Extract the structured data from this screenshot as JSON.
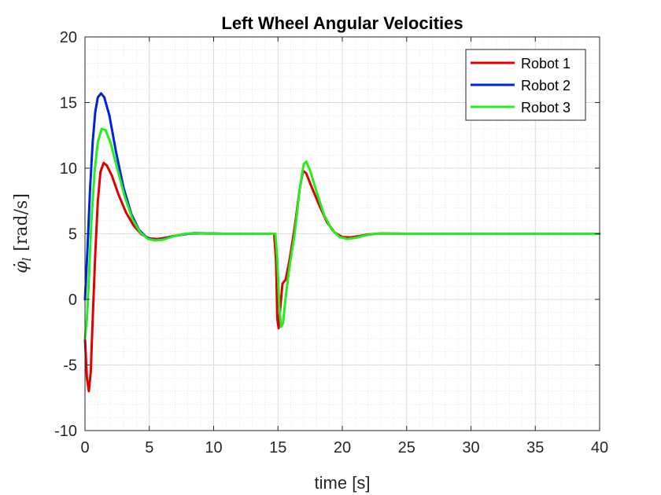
{
  "chart_data": {
    "type": "line",
    "title": "Left Wheel Angular Velocities",
    "xlabel": "time [s]",
    "ylabel": "φ̇ l [rad/s]",
    "ylabel_parts": {
      "symbol": "φ̇",
      "subscript": "l",
      "unit": "[rad/s]"
    },
    "xlim": [
      0,
      40
    ],
    "ylim": [
      -10,
      20
    ],
    "xticks": [
      0,
      5,
      10,
      15,
      20,
      25,
      30,
      35,
      40
    ],
    "yticks": [
      -10,
      -5,
      0,
      5,
      10,
      15,
      20
    ],
    "xtick_labels": [
      "0",
      "5",
      "10",
      "15",
      "20",
      "25",
      "30",
      "35",
      "40"
    ],
    "ytick_labels": [
      "-10",
      "-5",
      "0",
      "5",
      "10",
      "15",
      "20"
    ],
    "grid": true,
    "minor_grid": true,
    "legend_position": "top-right",
    "series": [
      {
        "name": "Robot 1",
        "color": "#e00000",
        "points": [
          [
            0,
            -3.0
          ],
          [
            0.15,
            -6.0
          ],
          [
            0.3,
            -7.0
          ],
          [
            0.45,
            -5.5
          ],
          [
            0.6,
            -1.5
          ],
          [
            0.8,
            3.5
          ],
          [
            1.0,
            7.5
          ],
          [
            1.2,
            9.7
          ],
          [
            1.45,
            10.4
          ],
          [
            1.7,
            10.2
          ],
          [
            2.1,
            9.4
          ],
          [
            2.6,
            8.0
          ],
          [
            3.2,
            6.6
          ],
          [
            3.8,
            5.6
          ],
          [
            4.4,
            4.95
          ],
          [
            5.0,
            4.65
          ],
          [
            5.6,
            4.6
          ],
          [
            6.3,
            4.7
          ],
          [
            7.0,
            4.85
          ],
          [
            8.0,
            5.0
          ],
          [
            9.0,
            5.03
          ],
          [
            10.0,
            5.0
          ],
          [
            12.0,
            5.0
          ],
          [
            14.7,
            5.0
          ],
          [
            14.85,
            3.0
          ],
          [
            14.95,
            -1.5
          ],
          [
            15.05,
            -2.2
          ],
          [
            15.15,
            -1.0
          ],
          [
            15.35,
            1.2
          ],
          [
            15.6,
            1.5
          ],
          [
            15.9,
            3.0
          ],
          [
            16.3,
            5.5
          ],
          [
            16.7,
            8.5
          ],
          [
            16.95,
            9.8
          ],
          [
            17.2,
            9.6
          ],
          [
            17.6,
            8.6
          ],
          [
            18.2,
            7.2
          ],
          [
            18.8,
            5.9
          ],
          [
            19.4,
            5.1
          ],
          [
            20.0,
            4.75
          ],
          [
            20.6,
            4.72
          ],
          [
            21.3,
            4.82
          ],
          [
            22.0,
            4.95
          ],
          [
            23.0,
            5.02
          ],
          [
            25.0,
            5.0
          ],
          [
            40.0,
            5.0
          ]
        ]
      },
      {
        "name": "Robot 2",
        "color": "#0022dd",
        "points": [
          [
            0,
            0.0
          ],
          [
            0.2,
            4.0
          ],
          [
            0.4,
            8.5
          ],
          [
            0.6,
            12.0
          ],
          [
            0.8,
            14.3
          ],
          [
            1.0,
            15.4
          ],
          [
            1.25,
            15.7
          ],
          [
            1.5,
            15.4
          ],
          [
            1.9,
            14.0
          ],
          [
            2.4,
            11.3
          ],
          [
            3.0,
            8.5
          ],
          [
            3.6,
            6.5
          ],
          [
            4.2,
            5.3
          ],
          [
            4.8,
            4.7
          ],
          [
            5.4,
            4.5
          ],
          [
            6.0,
            4.55
          ],
          [
            6.8,
            4.8
          ],
          [
            7.6,
            4.95
          ],
          [
            8.5,
            5.05
          ],
          [
            9.5,
            5.03
          ],
          [
            11.0,
            5.0
          ],
          [
            14.7,
            5.0
          ]
        ]
      },
      {
        "name": "Robot 3",
        "color": "#22ee22",
        "points": [
          [
            0,
            -3.0
          ],
          [
            0.15,
            -1.5
          ],
          [
            0.3,
            1.5
          ],
          [
            0.5,
            6.0
          ],
          [
            0.75,
            9.8
          ],
          [
            1.0,
            12.0
          ],
          [
            1.3,
            13.0
          ],
          [
            1.6,
            12.9
          ],
          [
            2.0,
            11.9
          ],
          [
            2.5,
            10.0
          ],
          [
            3.1,
            7.8
          ],
          [
            3.7,
            6.1
          ],
          [
            4.3,
            5.1
          ],
          [
            4.9,
            4.6
          ],
          [
            5.5,
            4.5
          ],
          [
            6.1,
            4.55
          ],
          [
            6.9,
            4.82
          ],
          [
            7.8,
            5.0
          ],
          [
            8.8,
            5.05
          ],
          [
            10.0,
            5.0
          ],
          [
            14.8,
            5.0
          ],
          [
            14.95,
            3.0
          ],
          [
            15.1,
            -0.5
          ],
          [
            15.25,
            -2.1
          ],
          [
            15.4,
            -1.8
          ],
          [
            15.6,
            0.2
          ],
          [
            15.9,
            2.5
          ],
          [
            16.3,
            5.0
          ],
          [
            16.7,
            8.5
          ],
          [
            17.0,
            10.3
          ],
          [
            17.2,
            10.5
          ],
          [
            17.5,
            9.8
          ],
          [
            18.0,
            8.2
          ],
          [
            18.6,
            6.4
          ],
          [
            19.2,
            5.3
          ],
          [
            19.8,
            4.75
          ],
          [
            20.4,
            4.6
          ],
          [
            21.1,
            4.7
          ],
          [
            21.8,
            4.88
          ],
          [
            22.6,
            5.0
          ],
          [
            23.5,
            5.02
          ],
          [
            25.0,
            5.0
          ],
          [
            40.0,
            5.0
          ]
        ]
      }
    ]
  }
}
